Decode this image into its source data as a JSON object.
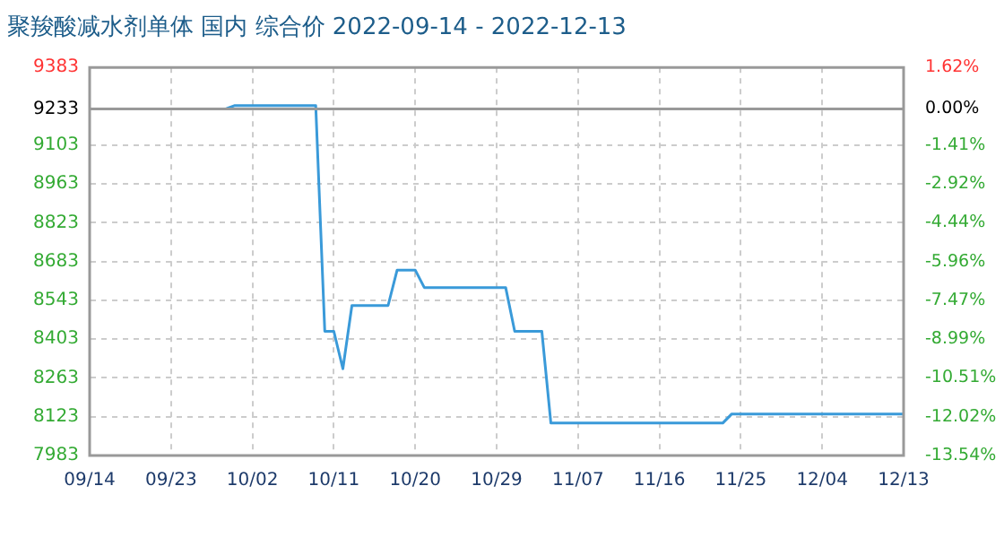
{
  "chart_data": {
    "type": "line",
    "title": "聚羧酸减水剂单体 国内 综合价 2022-09-14 - 2022-12-13",
    "x": [
      "2022-09-14",
      "2022-09-29",
      "2022-09-30",
      "2022-10-09",
      "2022-10-10",
      "2022-10-11",
      "2022-10-12",
      "2022-10-13",
      "2022-10-17",
      "2022-10-18",
      "2022-10-20",
      "2022-10-21",
      "2022-10-30",
      "2022-10-31",
      "2022-11-03",
      "2022-11-04",
      "2022-11-23",
      "2022-11-24",
      "2022-12-13"
    ],
    "values": [
      9233,
      9233,
      9245,
      9245,
      8431,
      8431,
      8296,
      8524,
      8524,
      8652,
      8652,
      8589,
      8589,
      8431,
      8431,
      8100,
      8100,
      8133,
      8133
    ],
    "color": "#3a9ad9",
    "xlim": [
      "2022-09-14",
      "2022-12-13"
    ],
    "xticks": [
      {
        "value": "2022-09-14",
        "label": "09/14"
      },
      {
        "value": "2022-09-23",
        "label": "09/23"
      },
      {
        "value": "2022-10-02",
        "label": "10/02"
      },
      {
        "value": "2022-10-11",
        "label": "10/11"
      },
      {
        "value": "2022-10-20",
        "label": "10/20"
      },
      {
        "value": "2022-10-29",
        "label": "10/29"
      },
      {
        "value": "2022-11-07",
        "label": "11/07"
      },
      {
        "value": "2022-11-16",
        "label": "11/16"
      },
      {
        "value": "2022-11-25",
        "label": "11/25"
      },
      {
        "value": "2022-12-04",
        "label": "12/04"
      },
      {
        "value": "2022-12-13",
        "label": "12/13"
      }
    ],
    "ylim": [
      7983,
      9383
    ],
    "yticks": [
      7983,
      8123,
      8263,
      8403,
      8543,
      8683,
      8823,
      8963,
      9103,
      9233,
      9383
    ],
    "y2lim": [
      -13.54,
      1.62
    ],
    "y2ticks": [
      {
        "value": -13.54,
        "label": "-13.54%"
      },
      {
        "value": -12.02,
        "label": "-12.02%"
      },
      {
        "value": -10.51,
        "label": "-10.51%"
      },
      {
        "value": -8.99,
        "label": "-8.99%"
      },
      {
        "value": -7.47,
        "label": "-7.47%"
      },
      {
        "value": -5.96,
        "label": "-5.96%"
      },
      {
        "value": -4.44,
        "label": "-4.44%"
      },
      {
        "value": -2.92,
        "label": "-2.92%"
      },
      {
        "value": -1.41,
        "label": "-1.41%"
      },
      {
        "value": 0,
        "label": "0.00%"
      },
      {
        "value": 1.62,
        "label": "1.62%"
      }
    ],
    "ref_lines": [
      {
        "axis": "y",
        "value": 9233,
        "color": "#999999"
      }
    ],
    "grid": true,
    "legend": false,
    "marker": "none",
    "line_style": "solid"
  }
}
